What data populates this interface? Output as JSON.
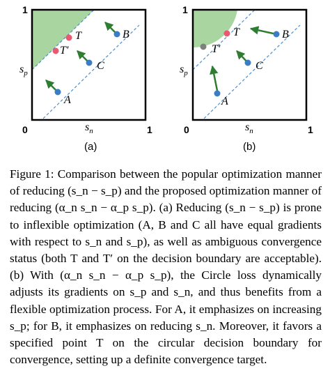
{
  "figure": {
    "panels": [
      {
        "id": "a",
        "caption": "(a)",
        "axis_origin": "0",
        "x_max": "1",
        "y_max": "1",
        "x_label": "s_n",
        "y_label": "s_p",
        "points": [
          {
            "label": "T",
            "color": "#e85a72"
          },
          {
            "label": "T′",
            "color": "#e85a72"
          },
          {
            "label": "B",
            "color": "#3b7dc4"
          },
          {
            "label": "C",
            "color": "#3b7dc4"
          },
          {
            "label": "A",
            "color": "#3b7dc4"
          }
        ],
        "decision_boundary": "linear"
      },
      {
        "id": "b",
        "caption": "(b)",
        "axis_origin": "0",
        "x_max": "1",
        "y_max": "1",
        "x_label": "s_n",
        "y_label": "s_p",
        "points": [
          {
            "label": "T",
            "color": "#e85a72"
          },
          {
            "label": "T′",
            "color": "#808080"
          },
          {
            "label": "B",
            "color": "#3b7dc4"
          },
          {
            "label": "C",
            "color": "#3b7dc4"
          },
          {
            "label": "A",
            "color": "#3b7dc4"
          }
        ],
        "decision_boundary": "circular"
      }
    ],
    "colors": {
      "region": "#a8d5a0",
      "arrow": "#2e7d32",
      "dashed_line": "#4a8fd0"
    }
  },
  "caption": {
    "label": "Figure 1:",
    "text": "Comparison between the popular optimization manner of reducing (s_n − s_p) and the proposed optimization manner of reducing (α_n s_n − α_p s_p). (a) Reducing (s_n − s_p) is prone to inflexible optimization (A, B and C all have equal gradients with respect to s_n and s_p), as well as ambiguous convergence status (both T and T′ on the decision boundary are acceptable). (b) With (α_n s_n − α_p s_p), the Circle loss dynamically adjusts its gradients on s_p and s_n, and thus benefits from a flexible optimization process. For A, it emphasizes on increasing s_p; for B, it emphasizes on reducing s_n. Moreover, it favors a specified point T on the circular decision boundary for convergence, setting up a definite convergence target."
  }
}
